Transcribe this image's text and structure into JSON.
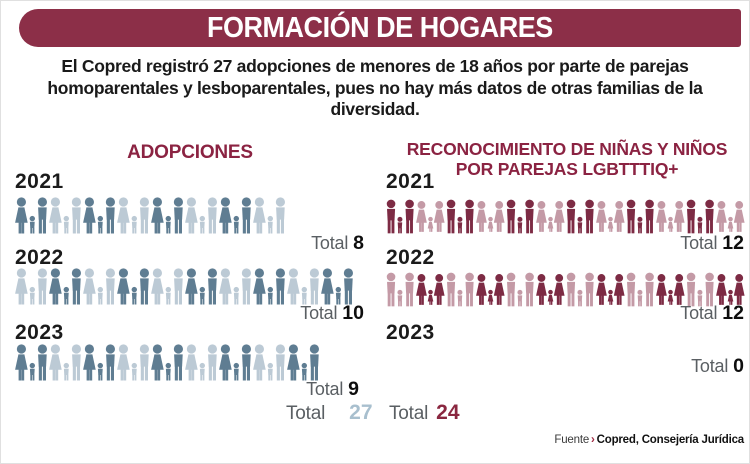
{
  "title": "FORMACIÓN DE HOGARES",
  "intro": "El Copred registró 27 adopciones de menores de 18 años por parte de parejas homoparentales y lesboparentales, pues no hay más datos de otras familias de la diversidad.",
  "labels": {
    "total": "Total"
  },
  "source": {
    "prefix": "Fuente",
    "arrow": "›",
    "text": "Copred, Consejería Jurídica"
  },
  "colors": {
    "banner": "#8C2F48",
    "heading": "#8B2342",
    "total_label_gray": "#5A5F63",
    "grand_total_adoptions_blue": "#A8BFCE",
    "grand_total_recognition_maroon": "#8A2740"
  },
  "chart_data": [
    {
      "type": "pictograph",
      "title": "ADOPCIONES",
      "categories": [
        "2021",
        "2022",
        "2023"
      ],
      "values": [
        8,
        10,
        9
      ],
      "total": 27,
      "icon": "family-woman-child-man-icon",
      "row_start_shades": [
        "dark",
        "light",
        "dark"
      ],
      "colors": {
        "dark": "#5F7D92",
        "light": "#BCCAD5"
      }
    },
    {
      "type": "pictograph",
      "title": "RECONOCIMIENTO DE NIÑAS Y NIÑOS POR PAREJAS LGBTTTIQ+",
      "title_lines": [
        "RECONOCIMIENTO DE NIÑAS Y NIÑOS",
        "POR PAREJAS LGBTTTIQ+"
      ],
      "categories": [
        "2021",
        "2022",
        "2023"
      ],
      "values": [
        12,
        12,
        0
      ],
      "total": 24,
      "icon": "alternating-male-couple-and-female-couple-with-child-icon",
      "row_start_shades": [
        "dark",
        "light",
        null
      ],
      "colors": {
        "dark": "#7D2B44",
        "light": "#C49AA6"
      }
    }
  ]
}
